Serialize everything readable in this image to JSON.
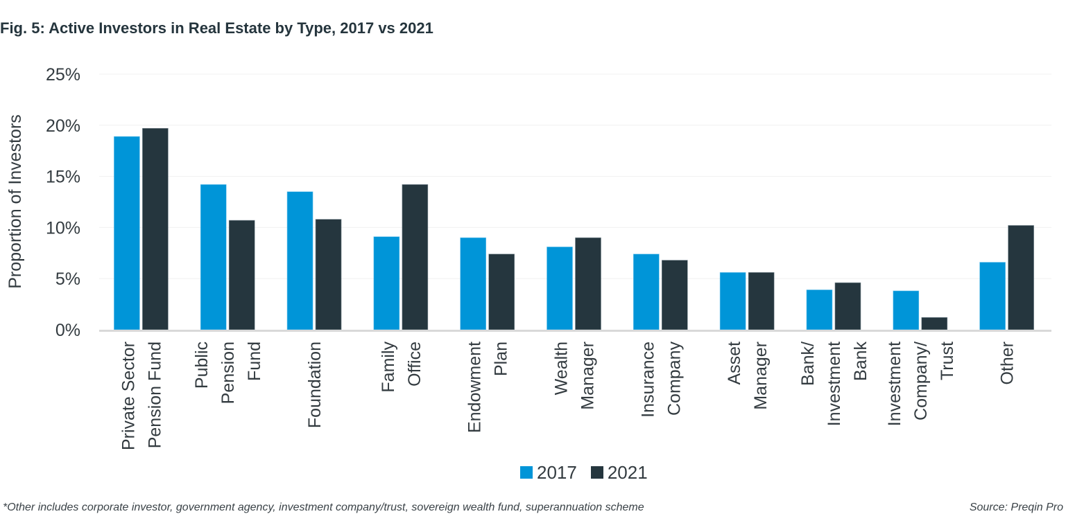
{
  "title": "Fig. 5: Active Investors in Real Estate by Type, 2017 vs 2021",
  "footnote": "*Other includes corporate investor, government agency, investment company/trust, sovereign wealth fund, superannuation scheme",
  "source": "Source: Preqin Pro",
  "colors": {
    "series_2017": "#0095d8",
    "series_2021": "#25363e",
    "grid": "#f0f0f0",
    "axis": "#d9d9d9",
    "text": "#333b40"
  },
  "chart_data": {
    "type": "bar",
    "title": "Fig. 5: Active Investors in Real Estate by Type, 2017 vs 2021",
    "xlabel": "",
    "ylabel": "Proportion of Investors",
    "ylim": [
      0,
      25
    ],
    "yticks": [
      0,
      5,
      10,
      15,
      20,
      25
    ],
    "ytick_labels": [
      "0%",
      "5%",
      "10%",
      "15%",
      "20%",
      "25%"
    ],
    "grid": true,
    "legend_position": "bottom-center",
    "categories": [
      [
        "Private Sector",
        "Pension Fund"
      ],
      [
        "Public",
        "Pension",
        "Fund"
      ],
      [
        "Foundation"
      ],
      [
        "Family",
        "Office"
      ],
      [
        "Endowment",
        "Plan"
      ],
      [
        "Wealth",
        "Manager"
      ],
      [
        "Insurance",
        "Company"
      ],
      [
        "Asset",
        "Manager"
      ],
      [
        "Bank/",
        "Investment",
        "Bank"
      ],
      [
        "Investment",
        "Company/",
        "Trust"
      ],
      [
        "Other"
      ]
    ],
    "series": [
      {
        "name": "2017",
        "values": [
          18.9,
          14.2,
          13.5,
          9.1,
          9.0,
          8.1,
          7.4,
          5.6,
          3.9,
          3.8,
          6.6
        ]
      },
      {
        "name": "2021",
        "values": [
          19.7,
          10.7,
          10.8,
          14.2,
          7.4,
          9.0,
          6.8,
          5.6,
          4.6,
          1.2,
          10.2
        ]
      }
    ]
  }
}
